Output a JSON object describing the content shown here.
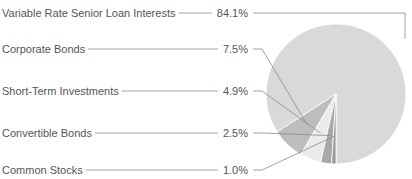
{
  "chart_data": {
    "type": "pie",
    "categories": [
      "Variable Rate Senior Loan Interests",
      "Corporate Bonds",
      "Short-Term Investments",
      "Convertible Bonds",
      "Common Stocks"
    ],
    "values": [
      84.1,
      7.5,
      4.9,
      2.5,
      1.0
    ],
    "value_labels": [
      "84.1%",
      "7.5%",
      "4.9%",
      "2.5%",
      "1.0%"
    ],
    "colors": [
      "#d9d9d9",
      "#bdbdbd",
      "#ebebeb",
      "#a8a8a8",
      "#9a9a9a"
    ],
    "data_labels": true
  }
}
